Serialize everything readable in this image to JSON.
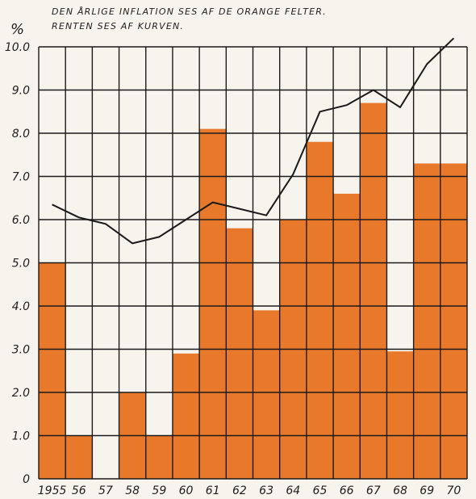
{
  "chart_data": {
    "type": "bar",
    "title": [
      "DEN ÅRLIGE INFLATION SES AF DE ORANGE FELTER.",
      "RENTEN SES AF KURVEN."
    ],
    "ylabel": "%",
    "ylim": [
      0,
      10
    ],
    "y_ticks": [
      "0",
      "1.0",
      "2.0",
      "3.0",
      "4.0",
      "5.0",
      "6.0",
      "7.0",
      "8.0",
      "9.0",
      "10.0"
    ],
    "categories": [
      "1955",
      "56",
      "57",
      "58",
      "59",
      "60",
      "61",
      "62",
      "63",
      "64",
      "65",
      "66",
      "67",
      "68",
      "69",
      "70"
    ],
    "series": [
      {
        "kind": "bar",
        "values": [
          5.0,
          1.0,
          0.0,
          2.0,
          1.0,
          2.9,
          8.1,
          5.8,
          3.9,
          6.0,
          7.8,
          6.6,
          8.7,
          2.95,
          7.3,
          7.3
        ],
        "color": "#e8782a"
      },
      {
        "kind": "line",
        "values": [
          6.35,
          6.05,
          5.9,
          5.45,
          5.6,
          6.0,
          6.4,
          6.25,
          6.1,
          7.05,
          8.5,
          8.65,
          9.0,
          8.6,
          9.6,
          10.2
        ],
        "color": "#1a1a1a"
      }
    ],
    "grid": true,
    "legend": "none"
  },
  "colors": {
    "background": "#f7f4ee",
    "bar": "#e8782a",
    "grid": "#1a1a1a",
    "line": "#1a1a1a"
  }
}
